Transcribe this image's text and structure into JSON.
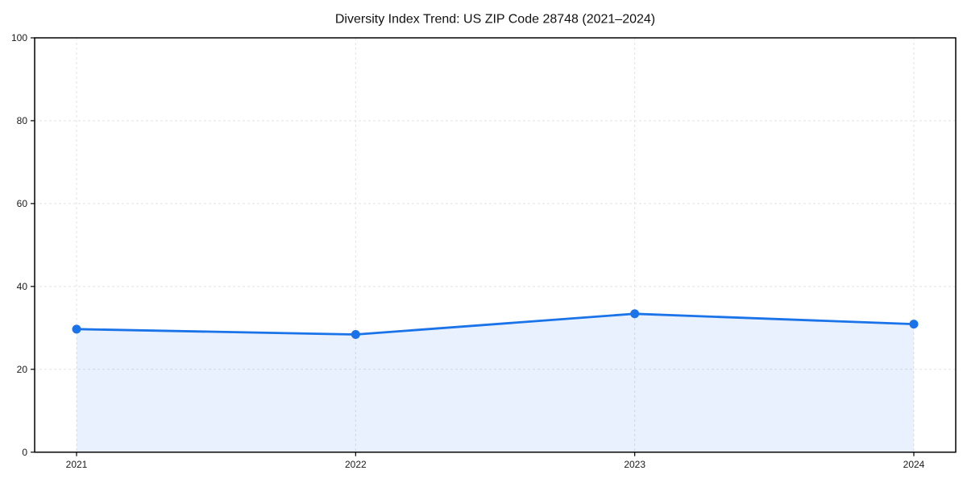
{
  "chart_data": {
    "type": "area",
    "title": "Diversity Index Trend: US ZIP Code 28748 (2021–2024)",
    "categories": [
      "2021",
      "2022",
      "2023",
      "2024"
    ],
    "series": [
      {
        "name": "Diversity Index",
        "values": [
          29.7,
          28.4,
          33.4,
          30.9
        ]
      }
    ],
    "xlabel": "",
    "ylabel": "",
    "ylim": [
      0,
      100
    ],
    "yticks": [
      0,
      20,
      40,
      60,
      80,
      100
    ],
    "grid": true,
    "grid_style": "dashed",
    "legend_position": "none",
    "line_color": "#1a73e8",
    "marker": "circle",
    "fill_color": "#1a73e8",
    "fill_opacity": 0.1,
    "grid_color": "#e3e3e3",
    "axis_color": "#000000",
    "tick_label_color": "#1a1a1a"
  }
}
